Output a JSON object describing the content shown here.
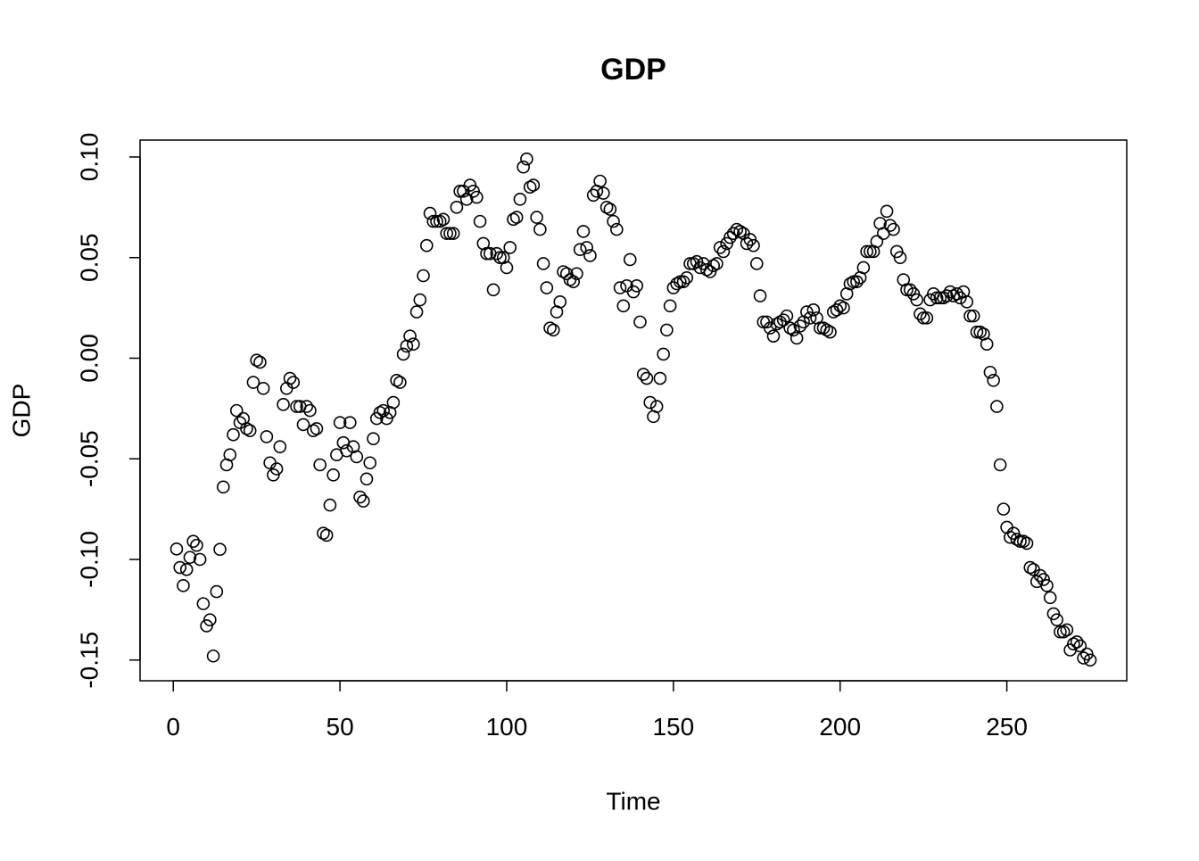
{
  "chart_data": {
    "type": "scatter",
    "title": "GDP",
    "x_label": "Time",
    "y_label": "GDP",
    "color": "#000000",
    "xlim": [
      -9.96,
      285.96
    ],
    "ylim": [
      -0.1603,
      0.1084
    ],
    "xticks": [
      0,
      50,
      100,
      150,
      200,
      250
    ],
    "yticks": [
      {
        "value": -0.15,
        "label": "-0.15"
      },
      {
        "value": -0.1,
        "label": "-0.10"
      },
      -0.05,
      {
        "value": 0,
        "label": "0.00"
      },
      0.05,
      {
        "value": 0.1,
        "label": "0.10"
      }
    ],
    "x": [
      1,
      2,
      3,
      4,
      5,
      6,
      7,
      8,
      9,
      10,
      11,
      12,
      13,
      14,
      15,
      16,
      17,
      18,
      19,
      20,
      21,
      22,
      23,
      24,
      25,
      26,
      27,
      28,
      29,
      30,
      31,
      32,
      33,
      34,
      35,
      36,
      37,
      38,
      39,
      40,
      41,
      42,
      43,
      44,
      45,
      46,
      47,
      48,
      49,
      50,
      51,
      52,
      53,
      54,
      55,
      56,
      57,
      58,
      59,
      60,
      61,
      62,
      63,
      64,
      65,
      66,
      67,
      68,
      69,
      70,
      71,
      72,
      73,
      74,
      75,
      76,
      77,
      78,
      79,
      80,
      81,
      82,
      83,
      84,
      85,
      86,
      87,
      88,
      89,
      90,
      91,
      92,
      93,
      94,
      95,
      96,
      97,
      98,
      99,
      100,
      101,
      102,
      103,
      104,
      105,
      106,
      107,
      108,
      109,
      110,
      111,
      112,
      113,
      114,
      115,
      116,
      117,
      118,
      119,
      120,
      121,
      122,
      123,
      124,
      125,
      126,
      127,
      128,
      129,
      130,
      131,
      132,
      133,
      134,
      135,
      136,
      137,
      138,
      139,
      140,
      141,
      142,
      143,
      144,
      145,
      146,
      147,
      148,
      149,
      150,
      151,
      152,
      153,
      154,
      155,
      156,
      157,
      158,
      159,
      160,
      161,
      162,
      163,
      164,
      165,
      166,
      167,
      168,
      169,
      170,
      171,
      172,
      173,
      174,
      175,
      176,
      177,
      178,
      179,
      180,
      181,
      182,
      183,
      184,
      185,
      186,
      187,
      188,
      189,
      190,
      191,
      192,
      193,
      194,
      195,
      196,
      197,
      198,
      199,
      200,
      201,
      202,
      203,
      204,
      205,
      206,
      207,
      208,
      209,
      210,
      211,
      212,
      213,
      214,
      215,
      216,
      217,
      218,
      219,
      220,
      221,
      222,
      223,
      224,
      225,
      226,
      227,
      228,
      229,
      230,
      231,
      232,
      233,
      234,
      235,
      236,
      237,
      238,
      239,
      240,
      241,
      242,
      243,
      244,
      245,
      246,
      247,
      248,
      249,
      250,
      251,
      252,
      253,
      254,
      255,
      256,
      257,
      258,
      259,
      260,
      261,
      262,
      263,
      264,
      265,
      266,
      267,
      268,
      269,
      270,
      271,
      272,
      273,
      274,
      275
    ],
    "values": [
      -0.0948,
      -0.104,
      -0.113,
      -0.105,
      -0.099,
      -0.091,
      -0.093,
      -0.1,
      -0.122,
      -0.133,
      -0.13,
      -0.148,
      -0.116,
      -0.095,
      -0.064,
      -0.053,
      -0.048,
      -0.038,
      -0.026,
      -0.032,
      -0.03,
      -0.035,
      -0.036,
      -0.012,
      -0.001,
      -0.002,
      -0.015,
      -0.039,
      -0.052,
      -0.058,
      -0.055,
      -0.044,
      -0.023,
      -0.015,
      -0.01,
      -0.012,
      -0.024,
      -0.024,
      -0.033,
      -0.024,
      -0.026,
      -0.036,
      -0.035,
      -0.053,
      -0.087,
      -0.088,
      -0.073,
      -0.058,
      -0.048,
      -0.032,
      -0.042,
      -0.046,
      -0.032,
      -0.044,
      -0.049,
      -0.069,
      -0.071,
      -0.06,
      -0.052,
      -0.04,
      -0.03,
      -0.027,
      -0.026,
      -0.03,
      -0.027,
      -0.022,
      -0.011,
      -0.012,
      0.002,
      0.006,
      0.011,
      0.007,
      0.023,
      0.029,
      0.041,
      0.056,
      0.072,
      0.068,
      0.068,
      0.068,
      0.069,
      0.062,
      0.062,
      0.062,
      0.075,
      0.083,
      0.083,
      0.079,
      0.086,
      0.083,
      0.08,
      0.068,
      0.057,
      0.052,
      0.052,
      0.034,
      0.052,
      0.05,
      0.05,
      0.045,
      0.055,
      0.069,
      0.07,
      0.079,
      0.095,
      0.099,
      0.085,
      0.086,
      0.07,
      0.064,
      0.047,
      0.035,
      0.015,
      0.014,
      0.023,
      0.028,
      0.043,
      0.042,
      0.039,
      0.038,
      0.042,
      0.054,
      0.063,
      0.055,
      0.051,
      0.081,
      0.083,
      0.088,
      0.082,
      0.075,
      0.074,
      0.068,
      0.064,
      0.035,
      0.026,
      0.036,
      0.049,
      0.033,
      0.036,
      0.018,
      -0.008,
      -0.01,
      -0.022,
      -0.029,
      -0.024,
      -0.01,
      0.002,
      0.014,
      0.026,
      0.035,
      0.037,
      0.038,
      0.038,
      0.04,
      0.047,
      0.047,
      0.048,
      0.045,
      0.047,
      0.044,
      0.043,
      0.046,
      0.047,
      0.055,
      0.053,
      0.057,
      0.06,
      0.062,
      0.064,
      0.063,
      0.062,
      0.057,
      0.059,
      0.056,
      0.047,
      0.031,
      0.018,
      0.018,
      0.015,
      0.011,
      0.017,
      0.018,
      0.019,
      0.021,
      0.015,
      0.014,
      0.01,
      0.016,
      0.018,
      0.023,
      0.02,
      0.024,
      0.02,
      0.015,
      0.015,
      0.014,
      0.013,
      0.023,
      0.024,
      0.026,
      0.025,
      0.032,
      0.037,
      0.038,
      0.038,
      0.04,
      0.045,
      0.053,
      0.053,
      0.053,
      0.058,
      0.067,
      0.062,
      0.073,
      0.066,
      0.064,
      0.053,
      0.05,
      0.039,
      0.034,
      0.034,
      0.032,
      0.029,
      0.022,
      0.02,
      0.02,
      0.029,
      0.032,
      0.03,
      0.03,
      0.03,
      0.031,
      0.033,
      0.031,
      0.032,
      0.03,
      0.033,
      0.028,
      0.021,
      0.021,
      0.013,
      0.013,
      0.012,
      0.007,
      -0.007,
      -0.011,
      -0.024,
      -0.053,
      -0.075,
      -0.084,
      -0.089,
      -0.087,
      -0.09,
      -0.091,
      -0.091,
      -0.092,
      -0.104,
      -0.105,
      -0.111,
      -0.108,
      -0.11,
      -0.113,
      -0.119,
      -0.127,
      -0.13,
      -0.136,
      -0.136,
      -0.135,
      -0.145,
      -0.142,
      -0.141,
      -0.143,
      -0.149,
      -0.147,
      -0.15
    ]
  }
}
